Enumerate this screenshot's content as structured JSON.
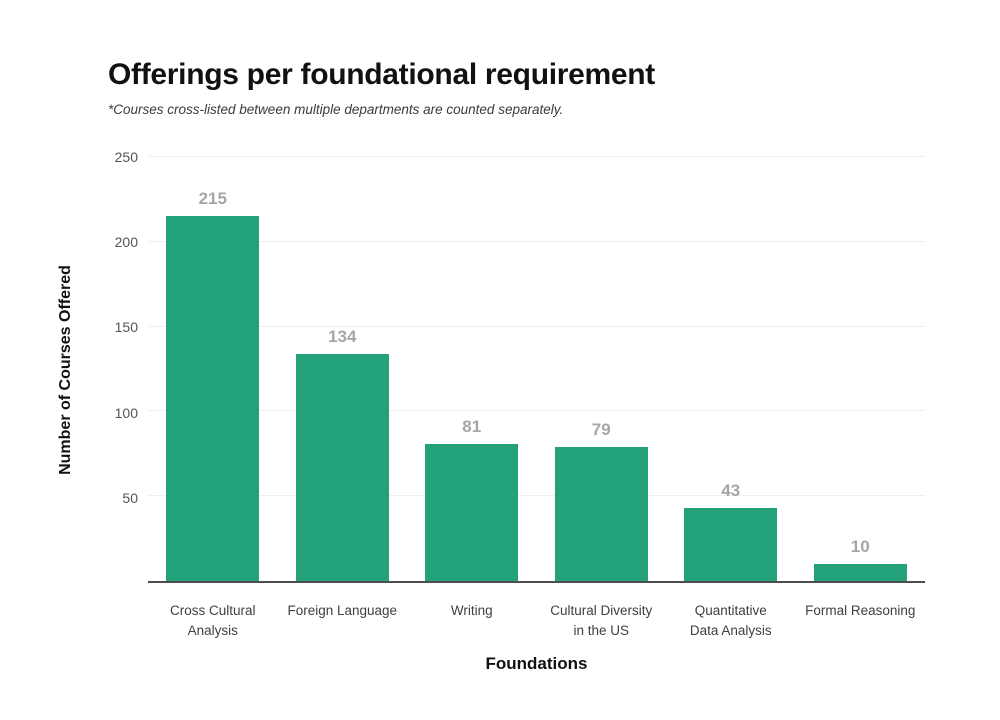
{
  "header": {
    "title": "Offerings per foundational requirement",
    "subtitle": "*Courses cross-listed between multiple departments are counted separately."
  },
  "chart_data": {
    "type": "bar",
    "title": "Offerings per foundational requirement",
    "subtitle": "*Courses cross-listed between multiple departments are counted separately.",
    "categories": [
      "Cross Cultural Analysis",
      "Foreign Language",
      "Writing",
      "Cultural Diversity in the US",
      "Quantitative Data Analysis",
      "Formal Reasoning"
    ],
    "category_lines": [
      [
        "Cross Cultural",
        "Analysis"
      ],
      [
        "Foreign Language"
      ],
      [
        "Writing"
      ],
      [
        "Cultural Diversity",
        "in the US"
      ],
      [
        "Quantitative",
        "Data Analysis"
      ],
      [
        "Formal Reasoning"
      ]
    ],
    "values": [
      215,
      134,
      81,
      79,
      43,
      10
    ],
    "xlabel": "Foundations",
    "ylabel": "Number of Courses Offered",
    "ylim": [
      0,
      250
    ],
    "yticks": [
      50,
      100,
      150,
      200,
      250
    ],
    "grid": true,
    "legend": "none",
    "colors": {
      "bar": "#22A17B",
      "value_label": "#A6A6A6",
      "grid_line": "#EFEFEF",
      "axis_line": "#4D4D4D",
      "y_tick_label": "#555555",
      "x_tick_label": "#404040",
      "title": "#111111"
    }
  }
}
